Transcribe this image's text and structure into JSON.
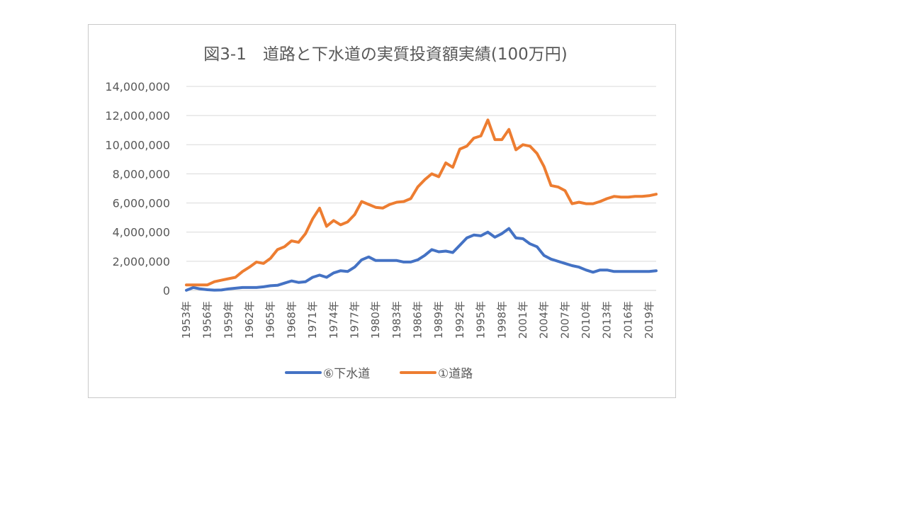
{
  "chart_data": {
    "type": "line",
    "title": "図3-1　道路と下水道の実質投資額実績(100万円)",
    "xlabel": "",
    "ylabel": "",
    "ylim": [
      0,
      14000000
    ],
    "yticks": [
      0,
      2000000,
      4000000,
      6000000,
      8000000,
      10000000,
      12000000,
      14000000
    ],
    "ytick_labels": [
      "0",
      "2,000,000",
      "4,000,000",
      "6,000,000",
      "8,000,000",
      "10,000,000",
      "12,000,000",
      "14,000,000"
    ],
    "grid": true,
    "legend_position": "bottom",
    "x": [
      "1953年",
      "1954年",
      "1955年",
      "1956年",
      "1957年",
      "1958年",
      "1959年",
      "1960年",
      "1961年",
      "1962年",
      "1963年",
      "1964年",
      "1965年",
      "1966年",
      "1967年",
      "1968年",
      "1969年",
      "1970年",
      "1971年",
      "1972年",
      "1973年",
      "1974年",
      "1975年",
      "1976年",
      "1977年",
      "1978年",
      "1979年",
      "1980年",
      "1981年",
      "1982年",
      "1983年",
      "1984年",
      "1985年",
      "1986年",
      "1987年",
      "1988年",
      "1989年",
      "1990年",
      "1991年",
      "1992年",
      "1993年",
      "1994年",
      "1995年",
      "1996年",
      "1997年",
      "1998年",
      "1999年",
      "2000年",
      "2001年",
      "2002年",
      "2003年",
      "2004年",
      "2005年",
      "2006年",
      "2007年",
      "2008年",
      "2009年",
      "2010年",
      "2011年",
      "2012年",
      "2013年",
      "2014年",
      "2015年",
      "2016年",
      "2017年",
      "2018年",
      "2019年",
      "2020年"
    ],
    "x_tick_labels": [
      "1953年",
      "1956年",
      "1959年",
      "1962年",
      "1965年",
      "1968年",
      "1971年",
      "1974年",
      "1977年",
      "1980年",
      "1983年",
      "1986年",
      "1989年",
      "1992年",
      "1995年",
      "1998年",
      "2001年",
      "2004年",
      "2007年",
      "2010年",
      "2013年",
      "2016年",
      "2019年"
    ],
    "series": [
      {
        "name": "⑥下水道",
        "color": "#4472C4",
        "values": [
          10000,
          200000,
          100000,
          50000,
          20000,
          30000,
          100000,
          150000,
          200000,
          200000,
          200000,
          250000,
          320000,
          350000,
          500000,
          650000,
          550000,
          600000,
          900000,
          1050000,
          900000,
          1200000,
          1350000,
          1300000,
          1600000,
          2100000,
          2300000,
          2050000,
          2050000,
          2050000,
          2050000,
          1950000,
          1950000,
          2100000,
          2400000,
          2800000,
          2650000,
          2700000,
          2600000,
          3100000,
          3600000,
          3800000,
          3750000,
          4000000,
          3650000,
          3900000,
          4250000,
          3600000,
          3550000,
          3200000,
          3000000,
          2400000,
          2150000,
          2000000,
          1850000,
          1700000,
          1600000,
          1400000,
          1250000,
          1400000,
          1400000,
          1300000,
          1300000,
          1300000,
          1300000,
          1300000,
          1300000,
          1350000
        ]
      },
      {
        "name": "①道路",
        "color": "#ED7D31",
        "values": [
          380000,
          380000,
          380000,
          380000,
          600000,
          700000,
          800000,
          900000,
          1300000,
          1600000,
          1950000,
          1850000,
          2200000,
          2800000,
          3000000,
          3400000,
          3300000,
          3900000,
          4900000,
          5650000,
          4400000,
          4800000,
          4500000,
          4700000,
          5200000,
          6100000,
          5900000,
          5700000,
          5650000,
          5900000,
          6050000,
          6100000,
          6300000,
          7100000,
          7600000,
          8000000,
          7800000,
          8750000,
          8450000,
          9700000,
          9900000,
          10450000,
          10600000,
          11700000,
          10350000,
          10350000,
          11050000,
          9650000,
          10000000,
          9900000,
          9400000,
          8500000,
          7200000,
          7100000,
          6850000,
          5950000,
          6050000,
          5950000,
          5950000,
          6100000,
          6300000,
          6450000,
          6400000,
          6400000,
          6450000,
          6450000,
          6500000,
          6600000
        ]
      }
    ]
  }
}
